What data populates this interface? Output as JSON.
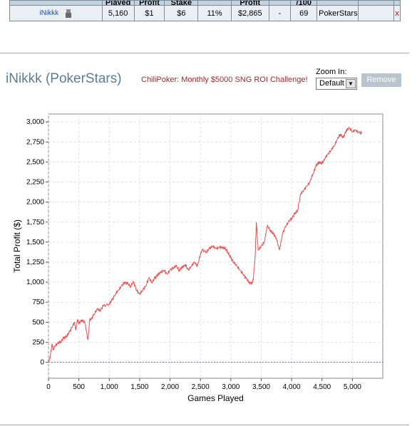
{
  "table": {
    "headers": [
      "",
      "Played",
      "Profit",
      "Stake",
      "",
      "Profit",
      "",
      "/100",
      "",
      ""
    ],
    "row": {
      "player": "iNikkk",
      "played": "5,160",
      "profit": "$1",
      "stake": "$6",
      "roi": "11%",
      "total_profit": "$2,865",
      "dash": "-",
      "per100": "69",
      "site": "PokerStars",
      "extra": "",
      "remove": "x"
    }
  },
  "header": {
    "title": "iNikkk (PokerStars)",
    "promo": "ChiliPoker: Monthly $5000 SNG ROI Challenge!",
    "zoom_label": "Zoom In:",
    "zoom_value": "Default",
    "remove_label": "Remove"
  },
  "colors": {
    "line": "#e05050",
    "zero_line": "#7070d0",
    "grid": "#dddddd"
  },
  "chart_data": {
    "type": "line",
    "xlabel": "Games Played",
    "ylabel": "Total Profit ($)",
    "xlim": [
      0,
      5500
    ],
    "ylim": [
      -200,
      3100
    ],
    "x_ticks": [
      0,
      500,
      1000,
      1500,
      2000,
      2500,
      3000,
      3500,
      4000,
      4500,
      5000
    ],
    "x_tick_labels": [
      "0",
      "500",
      "1,000",
      "1,500",
      "2,000",
      "2,500",
      "3,000",
      "3,500",
      "4,000",
      "4,500",
      "5,000"
    ],
    "y_ticks": [
      0,
      250,
      500,
      750,
      1000,
      1250,
      1500,
      1750,
      2000,
      2250,
      2500,
      2750,
      3000
    ],
    "y_tick_labels": [
      "0",
      "250",
      "500",
      "750",
      "1,000",
      "1,250",
      "1,500",
      "1,750",
      "2,000",
      "2,250",
      "2,500",
      "2,750",
      "3,000"
    ],
    "grid": true,
    "series": [
      {
        "x": [
          0,
          30,
          60,
          80,
          100,
          150,
          200,
          250,
          300,
          350,
          400,
          430,
          450,
          480,
          500,
          550,
          600,
          650,
          680,
          700,
          750,
          800,
          850,
          900,
          1000,
          1050,
          1100,
          1150,
          1200,
          1250,
          1300,
          1350,
          1400,
          1450,
          1500,
          1550,
          1600,
          1650,
          1700,
          1750,
          1800,
          1850,
          1900,
          1950,
          2000,
          2050,
          2100,
          2150,
          2200,
          2250,
          2300,
          2350,
          2400,
          2450,
          2500,
          2530,
          2600,
          2650,
          2700,
          2750,
          2800,
          2850,
          2900,
          2950,
          3000,
          3050,
          3100,
          3150,
          3200,
          3250,
          3300,
          3350,
          3370,
          3400,
          3420,
          3450,
          3500,
          3550,
          3600,
          3650,
          3700,
          3750,
          3800,
          3850,
          3900,
          3950,
          4000,
          4050,
          4100,
          4150,
          4200,
          4250,
          4300,
          4350,
          4400,
          4450,
          4500,
          4550,
          4600,
          4650,
          4700,
          4750,
          4800,
          4850,
          4900,
          4950,
          5000,
          5050,
          5100,
          5160
        ],
        "y": [
          0,
          80,
          230,
          150,
          200,
          230,
          260,
          300,
          330,
          380,
          460,
          500,
          400,
          540,
          480,
          530,
          490,
          280,
          540,
          530,
          600,
          660,
          650,
          700,
          730,
          780,
          850,
          900,
          950,
          1000,
          980,
          950,
          1000,
          900,
          850,
          900,
          950,
          1050,
          1000,
          1050,
          1100,
          1120,
          1150,
          1100,
          1150,
          1180,
          1200,
          1150,
          1180,
          1220,
          1150,
          1200,
          1250,
          1200,
          1350,
          1400,
          1380,
          1420,
          1450,
          1420,
          1430,
          1440,
          1420,
          1380,
          1300,
          1250,
          1200,
          1150,
          1100,
          1050,
          1000,
          980,
          1050,
          1300,
          1750,
          1400,
          1450,
          1500,
          1700,
          1650,
          1600,
          1550,
          1400,
          1600,
          1700,
          1750,
          1800,
          1850,
          1900,
          2100,
          2150,
          2200,
          2250,
          2350,
          2450,
          2500,
          2480,
          2550,
          2600,
          2650,
          2700,
          2780,
          2850,
          2800,
          2900,
          2920,
          2880,
          2900,
          2870,
          2860
        ]
      }
    ]
  }
}
